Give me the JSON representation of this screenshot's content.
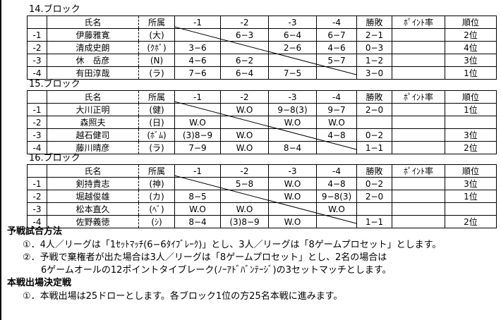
{
  "table_headers": {
    "row_label": "",
    "name": "氏名",
    "affiliation": "所属",
    "opponents": [
      "-1",
      "-2",
      "-3",
      "-4"
    ],
    "win_loss": "勝敗",
    "point_rate": "ﾎﾟｲﾝﾄ率",
    "rank": "順位"
  },
  "blocks": [
    {
      "title": "14.ブロック",
      "rows": [
        {
          "label": "-1",
          "name": "伊藤雅寛",
          "affiliation": "(大)",
          "scores": [
            "",
            "6−3",
            "6−4",
            "6−7"
          ],
          "win_loss": "2−1",
          "point_rate": "",
          "rank": "2位"
        },
        {
          "label": "-2",
          "name": "清成史朗",
          "affiliation": "(ｸﾎﾞ)",
          "scores": [
            "3−6",
            "",
            "2−6",
            "4−6"
          ],
          "win_loss": "0−3",
          "point_rate": "",
          "rank": "4位"
        },
        {
          "label": "-3",
          "name": "休　岳彦",
          "affiliation": "(N)",
          "scores": [
            "4−6",
            "6−2",
            "",
            "5−7"
          ],
          "win_loss": "1−2",
          "point_rate": "",
          "rank": "3位"
        },
        {
          "label": "-4",
          "name": "有田淳哉",
          "affiliation": "(ラ)",
          "scores": [
            "7−6",
            "6−4",
            "7−5",
            ""
          ],
          "win_loss": "3−0",
          "point_rate": "",
          "rank": "1位"
        }
      ]
    },
    {
      "title": "15.ブロック",
      "rows": [
        {
          "label": "-1",
          "name": "大川正明",
          "affiliation": "(健)",
          "scores": [
            "",
            "W.O",
            "9−8(3)",
            "9−7"
          ],
          "win_loss": "2−0",
          "point_rate": "",
          "rank": "1位"
        },
        {
          "label": "-2",
          "name": "森照夫",
          "affiliation": "(日)",
          "scores": [
            "W.O",
            "",
            "W.O",
            "W.O"
          ],
          "win_loss": "",
          "point_rate": "",
          "rank": ""
        },
        {
          "label": "-3",
          "name": "越石健司",
          "affiliation": "(ﾎﾞﾑ)",
          "scores": [
            "(3)8−9",
            "W.O",
            "",
            "4−8"
          ],
          "win_loss": "0−2",
          "point_rate": "",
          "rank": "3位"
        },
        {
          "label": "-4",
          "name": "藤川晴彦",
          "affiliation": "(ラ)",
          "scores": [
            "7−9",
            "W.O",
            "8−4",
            ""
          ],
          "win_loss": "1−1",
          "point_rate": "",
          "rank": "2位"
        }
      ]
    },
    {
      "title": "16.ブロック",
      "rows": [
        {
          "label": "-1",
          "name": "剣持貴志",
          "affiliation": "(神)",
          "scores": [
            "",
            "5−8",
            "W.O",
            "4−8"
          ],
          "win_loss": "0−2",
          "point_rate": "",
          "rank": "3位"
        },
        {
          "label": "-2",
          "name": "堀越俊雄",
          "affiliation": "(カ)",
          "scores": [
            "8−5",
            "",
            "W.O",
            "9−8(3)"
          ],
          "win_loss": "2−0",
          "point_rate": "",
          "rank": "1位"
        },
        {
          "label": "-3",
          "name": "松本直久",
          "affiliation": "(ﾍﾞ)",
          "scores": [
            "W.O",
            "W.O",
            "",
            "W.O"
          ],
          "win_loss": "",
          "point_rate": "",
          "rank": ""
        },
        {
          "label": "-4",
          "name": "佐野義徳",
          "affiliation": "(ｼ)",
          "scores": [
            "8−4",
            "(3)8−9",
            "W.O",
            ""
          ],
          "win_loss": "1−1",
          "point_rate": "",
          "rank": "2位"
        }
      ]
    }
  ],
  "notes": {
    "prelim_heading": "予戦試合方法",
    "prelim_line1": "①．4人／リーグは「1ｾｯﾄﾏｯﾁ(6−6ﾀｲﾌﾞﾚｰｸ)」とし、3人／リーグは「8ゲームプロセット」とします。",
    "prelim_line2": "②．予戦で棄権者が出た場合は3人／リーグは「8ゲームプロセット」とし、2名の場合は",
    "prelim_line3": "6ゲームオールの12ポイントタイブレーク(ﾉｰｱﾄﾞﾊﾞﾝﾃｰｼﾞ)の3セットマッチとします。",
    "main_heading": "本戦出場決定戦",
    "main_line1": "①．本戦出場は25ドローとします。各ブロック1位の方25名本戦に進みます。"
  }
}
